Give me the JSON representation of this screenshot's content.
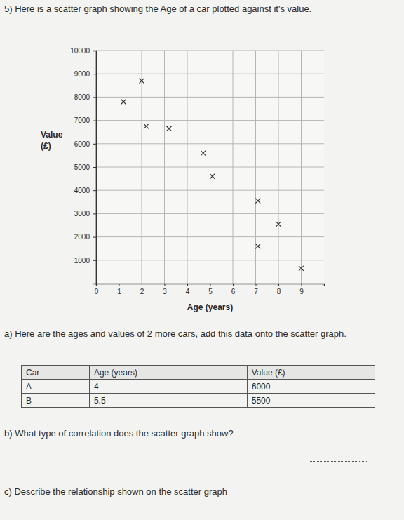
{
  "chart_data": {
    "type": "scatter",
    "title": "5) Here is a scatter graph showing the Age of a car plotted against it's value.",
    "x_label": "Age (years)",
    "y_label": "Value (£)",
    "x": [
      2,
      1.2,
      2.2,
      3.2,
      4.7,
      5.1,
      7.1,
      8,
      7.1,
      9
    ],
    "values": [
      8700,
      7800,
      6750,
      6650,
      5600,
      4600,
      3550,
      2550,
      1600,
      650
    ],
    "xlim": [
      0,
      10
    ],
    "ylim": [
      0,
      10000
    ],
    "xticks": [
      0,
      1,
      2,
      3,
      4,
      5,
      6,
      7,
      8,
      9
    ],
    "yticks": [
      1000,
      2000,
      3000,
      4000,
      5000,
      6000,
      7000,
      8000,
      9000,
      10000
    ],
    "grid": true,
    "marker": "x",
    "color": "#333333"
  },
  "document": {
    "question_a": "a) Here are the ages and values of 2 more cars, add this data onto the scatter graph.",
    "table": {
      "header": [
        "Car",
        "Age (years)",
        "Value (£)"
      ],
      "rows": [
        [
          "A",
          4,
          6000
        ],
        [
          "B",
          5.5,
          5500
        ]
      ]
    },
    "question_b": "b) What type of correlation does the scatter graph show?",
    "question_c": "c) Describe the relationship shown on the scatter graph"
  }
}
